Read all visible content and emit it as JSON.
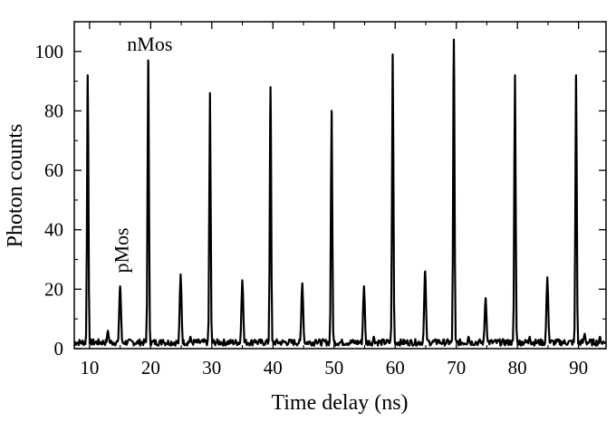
{
  "chart_data": {
    "type": "line",
    "xlabel": "Time delay (ns)",
    "ylabel": "Photon counts",
    "xlim": [
      7.5,
      94.5
    ],
    "ylim": [
      0,
      110
    ],
    "x_ticks": [
      10,
      20,
      30,
      40,
      50,
      60,
      70,
      80,
      90
    ],
    "y_ticks": [
      0,
      20,
      40,
      60,
      80,
      100
    ],
    "grid": false,
    "legend": "none",
    "line_color": "#000000",
    "annotations": [
      {
        "text": "nMos",
        "x": 20,
        "y": 100
      },
      {
        "text": "pMos",
        "x": 15,
        "y": 23,
        "rotation": -90
      }
    ],
    "baseline": 1,
    "peaks": [
      {
        "x": 9.7,
        "y": 92
      },
      {
        "x": 13.0,
        "y": 6
      },
      {
        "x": 15.0,
        "y": 21
      },
      {
        "x": 19.6,
        "y": 97
      },
      {
        "x": 22.0,
        "y": 3
      },
      {
        "x": 24.9,
        "y": 25
      },
      {
        "x": 26.5,
        "y": 4
      },
      {
        "x": 29.7,
        "y": 86
      },
      {
        "x": 35.0,
        "y": 23
      },
      {
        "x": 37.0,
        "y": 3
      },
      {
        "x": 39.6,
        "y": 88
      },
      {
        "x": 44.8,
        "y": 22
      },
      {
        "x": 47.0,
        "y": 3
      },
      {
        "x": 49.6,
        "y": 80
      },
      {
        "x": 54.9,
        "y": 21
      },
      {
        "x": 56.5,
        "y": 4
      },
      {
        "x": 59.6,
        "y": 99
      },
      {
        "x": 64.9,
        "y": 26
      },
      {
        "x": 67.0,
        "y": 3
      },
      {
        "x": 69.6,
        "y": 104
      },
      {
        "x": 72.0,
        "y": 4
      },
      {
        "x": 74.8,
        "y": 17
      },
      {
        "x": 79.6,
        "y": 92
      },
      {
        "x": 82.0,
        "y": 4
      },
      {
        "x": 84.9,
        "y": 24
      },
      {
        "x": 89.6,
        "y": 92
      },
      {
        "x": 91.0,
        "y": 5
      },
      {
        "x": 93.5,
        "y": 4
      }
    ]
  }
}
